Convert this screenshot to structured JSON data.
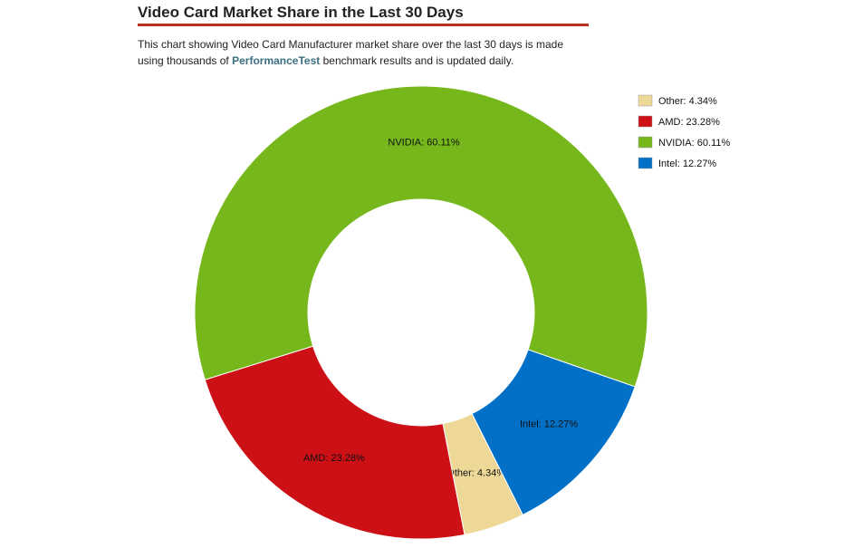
{
  "header": {
    "title": "Video Card Market Share in the Last 30 Days"
  },
  "description": {
    "before": "This chart showing Video Card Manufacturer market share over the last 30 days is made using thousands of",
    "link": "PerformanceTest",
    "after": "benchmark results and is updated daily."
  },
  "chart_data": {
    "type": "donut",
    "values": [
      4.34,
      23.28,
      60.11,
      12.27
    ],
    "value_labels": [
      "Other: 4.34%",
      "AMD: 23.28%",
      "NVIDIA: 60.11%",
      "Intel: 12.27%"
    ],
    "colors": [
      "#eed898",
      "#cc1016",
      "#76b81c",
      "#0170c6"
    ],
    "legend": "top-right"
  }
}
